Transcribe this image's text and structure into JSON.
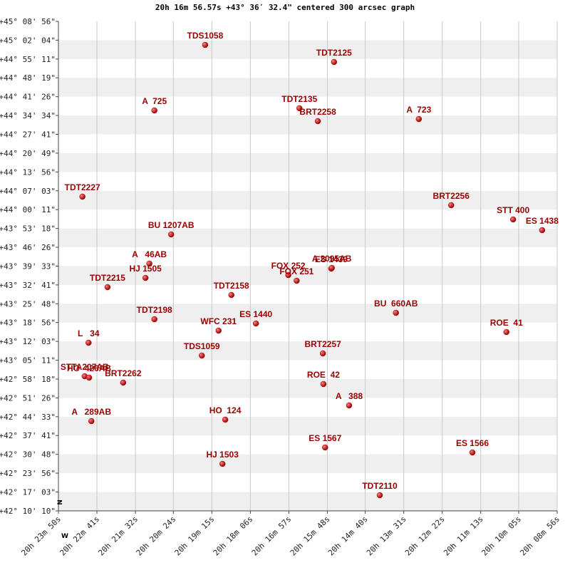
{
  "chart_data": {
    "type": "scatter",
    "title": "20h 16m 56.57s +43° 36′ 32.4\" centered 300 arcsec graph",
    "x_marker": "W",
    "y_marker": "N",
    "color": "#cc0000",
    "label_color": "#990000",
    "grid": true,
    "xlim": [
      1430,
      536
    ],
    "xticks": [
      {
        "value": 1430,
        "label": "20h 23m 50s"
      },
      {
        "value": 1361,
        "label": "20h 22m 41s"
      },
      {
        "value": 1292,
        "label": "20h 21m 32s"
      },
      {
        "value": 1224,
        "label": "20h 20m 24s"
      },
      {
        "value": 1155,
        "label": "20h 19m 15s"
      },
      {
        "value": 1086,
        "label": "20h 18m 06s"
      },
      {
        "value": 1017,
        "label": "20h 16m 57s"
      },
      {
        "value": 948,
        "label": "20h 15m 48s"
      },
      {
        "value": 880,
        "label": "20h 14m 40s"
      },
      {
        "value": 811,
        "label": "20h 13m 31s"
      },
      {
        "value": 742,
        "label": "20h 12m 22s"
      },
      {
        "value": 673,
        "label": "20h 11m 13s"
      },
      {
        "value": 605,
        "label": "20h 10m 05s"
      },
      {
        "value": 536,
        "label": "20h 08m 56s"
      }
    ],
    "ylim": [
      42.1694,
      45.1489
    ],
    "yticks": [
      {
        "value": 45.1489,
        "label": "+45° 08' 56\""
      },
      {
        "value": 45.0344,
        "label": "+45° 02' 04\""
      },
      {
        "value": 44.9197,
        "label": "+44° 55' 11\""
      },
      {
        "value": 44.8053,
        "label": "+44° 48' 19\""
      },
      {
        "value": 44.6906,
        "label": "+44° 41' 26\""
      },
      {
        "value": 44.5761,
        "label": "+44° 34' 34\""
      },
      {
        "value": 44.4614,
        "label": "+44° 27' 41\""
      },
      {
        "value": 44.3469,
        "label": "+44° 20' 49\""
      },
      {
        "value": 44.2322,
        "label": "+44° 13' 56\""
      },
      {
        "value": 44.1175,
        "label": "+44° 07' 03\""
      },
      {
        "value": 44.0031,
        "label": "+44° 00' 11\""
      },
      {
        "value": 43.8883,
        "label": "+43° 53' 18\""
      },
      {
        "value": 43.7739,
        "label": "+43° 46' 26\""
      },
      {
        "value": 43.6592,
        "label": "+43° 39' 33\""
      },
      {
        "value": 43.5447,
        "label": "+43° 32' 41\""
      },
      {
        "value": 43.43,
        "label": "+43° 25' 48\""
      },
      {
        "value": 43.3156,
        "label": "+43° 18' 56\""
      },
      {
        "value": 43.2008,
        "label": "+43° 12' 03\""
      },
      {
        "value": 43.0864,
        "label": "+43° 05' 11\""
      },
      {
        "value": 42.9717,
        "label": "+42° 58' 18\""
      },
      {
        "value": 42.8572,
        "label": "+42° 51' 26\""
      },
      {
        "value": 42.7425,
        "label": "+42° 44' 33\""
      },
      {
        "value": 42.6281,
        "label": "+42° 37' 41\""
      },
      {
        "value": 42.5133,
        "label": "+42° 30' 48\""
      },
      {
        "value": 42.3989,
        "label": "+42° 23' 56\""
      },
      {
        "value": 42.2842,
        "label": "+42° 17' 03\""
      },
      {
        "value": 42.1694,
        "label": "+42° 10' 10\""
      }
    ],
    "labels": [
      "TDS1058",
      "TDT2125",
      "A  725",
      "TDT2135",
      "BRT2258",
      "A  723",
      "TDT2227",
      "BRT2256",
      "STT 400",
      "ES 1438",
      "BU 1207AB",
      "A   46AB",
      "HJ 1505",
      "TDT2215",
      "ES 1439",
      "A 2095AB",
      "FOX 252",
      "FOX 251",
      "TDT2158",
      "BU  660AB",
      "TDT2198",
      "ES 1440",
      "WFC 231",
      "ROE  41",
      "L   34",
      "TDS1059",
      "BRT2257",
      "STTA207AB",
      "HO  426AB",
      "BRT2262",
      "ROE  42",
      "A   388",
      "A   289AB",
      "HO  124",
      "ES 1567",
      "ES 1566",
      "HJ 1503",
      "TDT2110"
    ],
    "x": [
      1167,
      936,
      1258,
      998,
      965,
      784,
      1387,
      726,
      615,
      563,
      1228,
      1267,
      1274,
      1342,
      941,
      940,
      1018,
      1003,
      1120,
      825,
      1258,
      1076,
      1143,
      627,
      1376,
      1173,
      956,
      1383,
      1375,
      1314,
      955,
      909,
      1371,
      1131,
      952,
      688,
      1136,
      854
    ],
    "values": [
      45.0058,
      44.9017,
      44.6068,
      44.6198,
      44.5417,
      44.5547,
      44.082,
      44.03,
      43.9432,
      43.8782,
      43.8521,
      43.6743,
      43.5876,
      43.5312,
      43.644,
      43.6483,
      43.6049,
      43.5702,
      43.4835,
      43.3751,
      43.336,
      43.31,
      43.2666,
      43.258,
      43.1929,
      43.1148,
      43.1279,
      42.9891,
      42.9804,
      42.95,
      42.9414,
      42.8113,
      42.7158,
      42.7245,
      42.5554,
      42.525,
      42.4556,
      42.2648
    ]
  }
}
